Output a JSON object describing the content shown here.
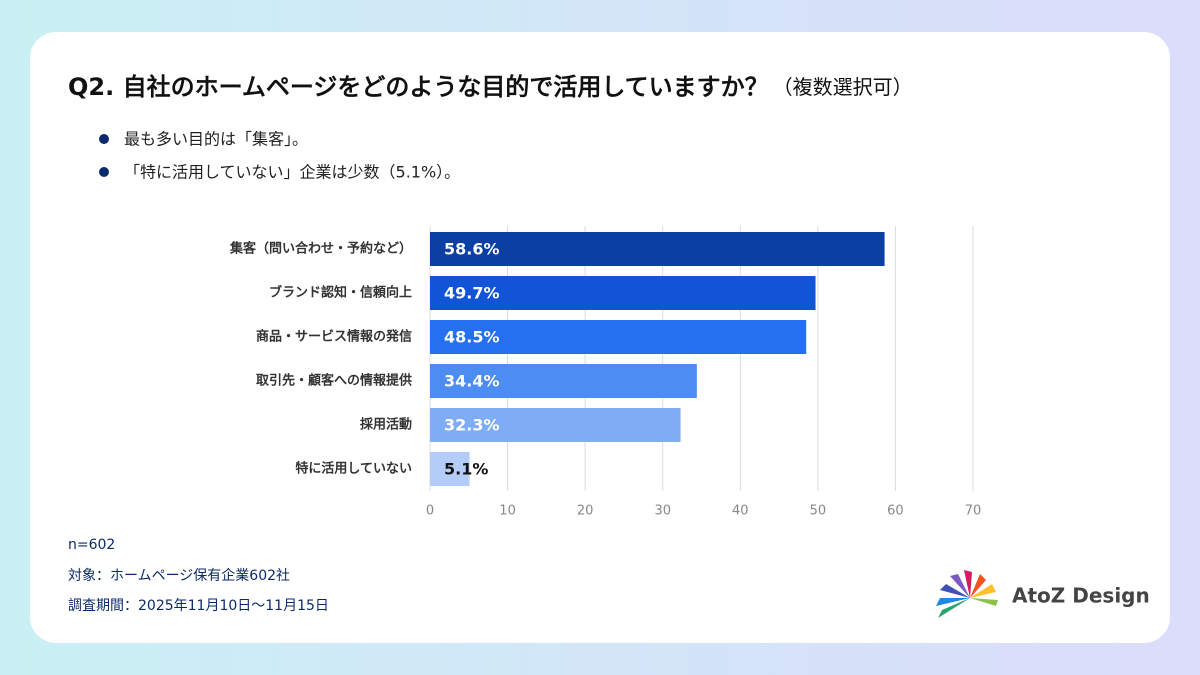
{
  "title": "Q2. 自社のホームページをどのような目的で活用していますか？",
  "title_note": "（複数選択可）",
  "bullets": [
    "最も多い目的は「集客」。",
    "「特に活用していない」企業は少数（5.1%）。"
  ],
  "notes": [
    "n=602",
    "対象：ホームページ保有企業602社",
    "調査期間：2025年11月10日〜11月15日"
  ],
  "logo": "AtoZ Design",
  "chart_data": {
    "type": "barh",
    "categories": [
      "集客（問い合わせ・予約など）",
      "ブランド認知・信頼向上",
      "商品・サービス情報の発信",
      "取引先・顧客への情報提供",
      "採用活動",
      "特に活用していない"
    ],
    "values": [
      58.6,
      49.7,
      48.5,
      34.4,
      32.3,
      5.1
    ],
    "value_labels": [
      "58.6%",
      "49.7%",
      "48.5%",
      "34.4%",
      "32.3%",
      "5.1%"
    ],
    "colors": [
      "#0b3fa3",
      "#1155d6",
      "#2470ef",
      "#4d8cf0",
      "#7fadf5",
      "#b3cdf8"
    ],
    "xlim": [
      0,
      70
    ],
    "xticks": [
      0,
      10,
      20,
      30,
      40,
      50,
      60,
      70
    ],
    "grid": true
  }
}
